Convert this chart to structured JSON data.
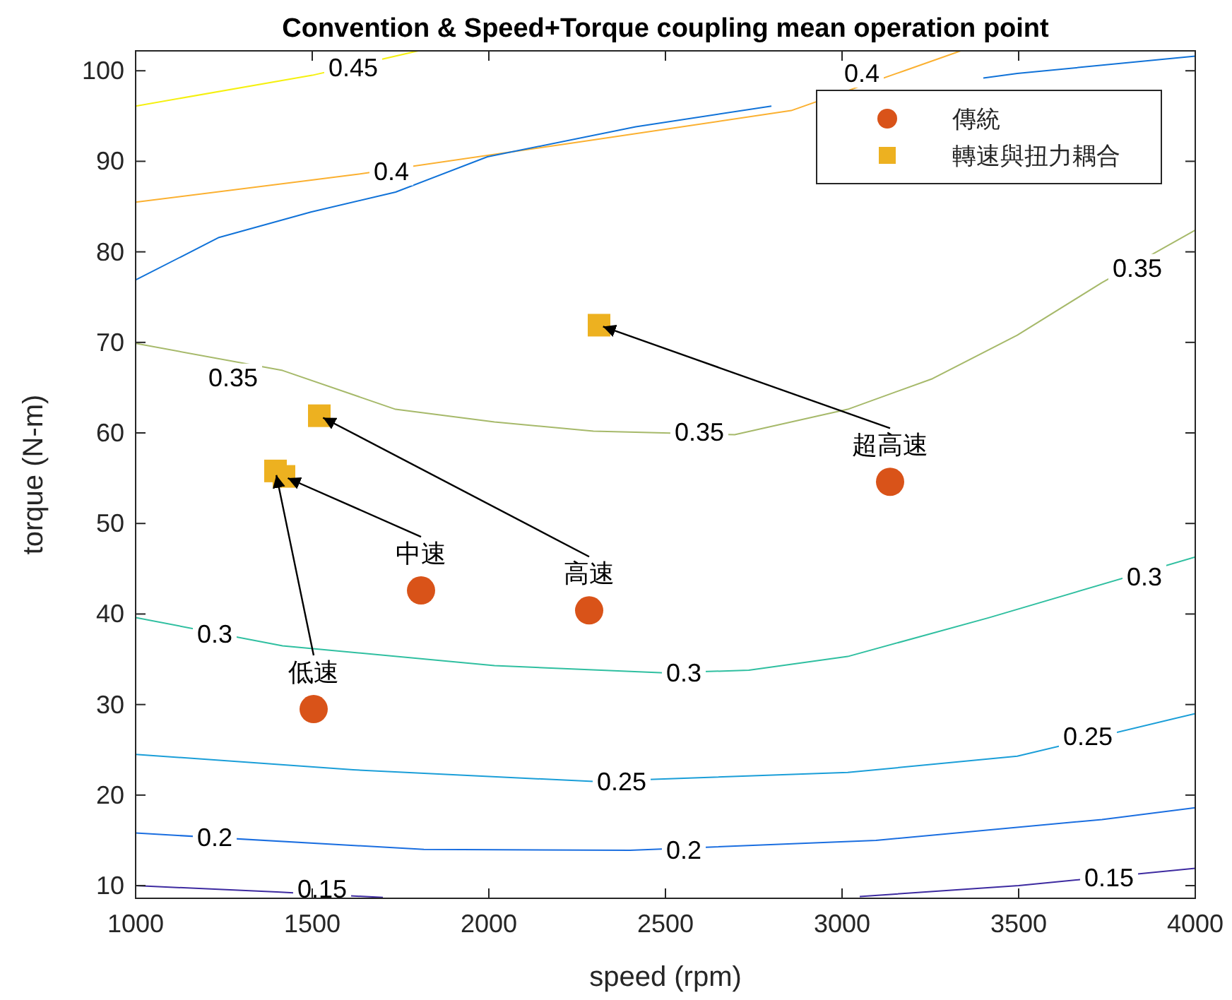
{
  "chart_data": {
    "type": "line",
    "title": "Convention & Speed+Torque coupling mean operation point",
    "xlabel": "speed (rpm)",
    "ylabel": "torque (N-m)",
    "xlim": [
      1000,
      4000
    ],
    "ylim": [
      8.6,
      102.2
    ],
    "xticks": [
      1000,
      1500,
      2000,
      2500,
      3000,
      3500,
      4000
    ],
    "yticks": [
      10,
      20,
      30,
      40,
      50,
      60,
      70,
      80,
      90,
      100
    ],
    "grid": false,
    "legend": "top right",
    "series": [
      {
        "type": "line",
        "color": "#f5f00f",
        "x": [
          1000,
          1500,
          1800
        ],
        "values": [
          96.1,
          99.5,
          102.2
        ]
      },
      {
        "type": "line",
        "color": "#fbb030",
        "x": [
          1000,
          1616,
          2216,
          2856,
          3176,
          3336
        ],
        "values": [
          85.5,
          88.5,
          91.9,
          95.6,
          100,
          102.2
        ]
      },
      {
        "type": "line",
        "color": "#1072d8",
        "x": [
          1000,
          1236,
          1496,
          1736,
          1996,
          2416,
          2800,
          3016,
          3400,
          3496,
          4000
        ],
        "values": [
          76.9,
          81.6,
          84.4,
          86.6,
          90.5,
          93.8,
          96.1,
          null,
          99.2,
          99.7,
          101.6
        ]
      },
      {
        "type": "line",
        "color": "#a6b96a",
        "x": [
          1000,
          1416,
          1736,
          2016,
          2296,
          2696,
          3016,
          3256,
          3496,
          3736,
          4000
        ],
        "values": [
          69.9,
          66.9,
          62.6,
          61.2,
          60.2,
          59.8,
          62.6,
          66,
          70.8,
          76.6,
          82.4
        ]
      },
      {
        "type": "line",
        "color": "#2fbfa0",
        "x": [
          1000,
          1416,
          2016,
          2496,
          2736,
          3016,
          3416,
          4000
        ],
        "values": [
          39.6,
          36.5,
          34.3,
          33.5,
          33.8,
          35.3,
          39.6,
          46.3
        ]
      },
      {
        "type": "line",
        "color": "#1a9ed8",
        "x": [
          1000,
          1616,
          2296,
          3016,
          3496,
          4000
        ],
        "values": [
          24.5,
          22.8,
          21.5,
          22.5,
          24.3,
          29
        ]
      },
      {
        "type": "line",
        "color": "#1a6ee0",
        "x": [
          1000,
          1816,
          2400,
          3096,
          3736,
          4000
        ],
        "values": [
          15.8,
          14,
          13.9,
          15,
          17.3,
          18.6
        ]
      },
      {
        "type": "line",
        "color": "#3d2aa0",
        "x": [
          1000,
          1400,
          1700,
          2500,
          3050,
          3500,
          4000
        ],
        "values": [
          10,
          9.3,
          8.7,
          null,
          8.8,
          10,
          11.9
        ]
      },
      {
        "type": "scatter",
        "name": "傳統",
        "color": "#d95319",
        "marker": "circle",
        "x": [
          1504,
          1808,
          2284,
          3136
        ],
        "values": [
          29.5,
          42.6,
          40.4,
          54.6
        ]
      },
      {
        "type": "scatter",
        "name": "轉速與扭力耦合",
        "color": "#edb120",
        "marker": "square",
        "x": [
          1396,
          1420,
          1520,
          2312
        ],
        "values": [
          55.8,
          55.2,
          61.9,
          71.9
        ]
      }
    ],
    "annotations": [
      {
        "text": "低速",
        "x": 1396,
        "y": 55.8
      },
      {
        "text": "中速",
        "x": 1420,
        "y": 55.2
      },
      {
        "text": "高速",
        "x": 1520,
        "y": 61.9
      },
      {
        "text": "超高速",
        "x": 2312,
        "y": 71.9
      },
      {
        "text": "0.45",
        "x": 1616,
        "y": 100.3
      },
      {
        "text": "0.4",
        "x": 1724,
        "y": 88.9
      },
      {
        "text": "0.4",
        "x": 3056,
        "y": 99.7
      },
      {
        "text": "0.35",
        "x": 1276,
        "y": 66.1
      },
      {
        "text": "0.35",
        "x": 2596,
        "y": 60.1
      },
      {
        "text": "0.35",
        "x": 3836,
        "y": 78.2
      },
      {
        "text": "0.3",
        "x": 1224,
        "y": 37.8
      },
      {
        "text": "0.3",
        "x": 2552,
        "y": 33.5
      },
      {
        "text": "0.3",
        "x": 3856,
        "y": 44.1
      },
      {
        "text": "0.25",
        "x": 2376,
        "y": 21.5
      },
      {
        "text": "0.25",
        "x": 3696,
        "y": 26.5
      },
      {
        "text": "0.2",
        "x": 1224,
        "y": 15.3
      },
      {
        "text": "0.2",
        "x": 2552,
        "y": 13.9
      },
      {
        "text": "0.15",
        "x": 1528,
        "y": 9.6
      },
      {
        "text": "0.15",
        "x": 3756,
        "y": 10.9
      }
    ]
  }
}
